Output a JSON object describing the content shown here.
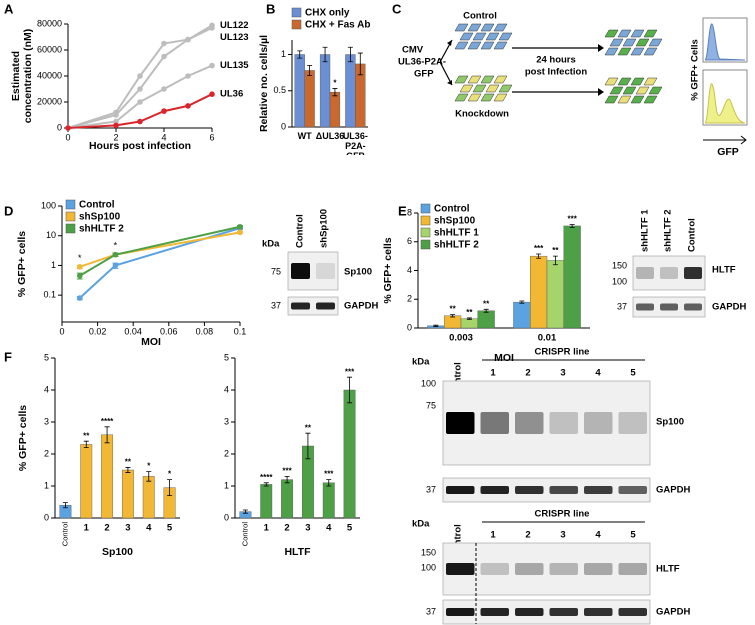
{
  "panel_labels": [
    "A",
    "B",
    "C",
    "D",
    "E",
    "F"
  ],
  "chart_data": [
    {
      "type": "line",
      "x_label": "Hours post infection",
      "y_label": [
        "Estimated",
        "concentration (nM)"
      ],
      "x": [
        0,
        2,
        3,
        4,
        5,
        6
      ],
      "xlim": [
        0,
        6
      ],
      "xticks": [
        0,
        2,
        4,
        6
      ],
      "ylim": [
        0,
        80000
      ],
      "yticks": [
        0,
        20000,
        40000,
        60000,
        80000
      ],
      "series": [
        {
          "name": "UL122",
          "color": "#bdbdbd",
          "values": [
            0,
            12000,
            40000,
            65000,
            68000,
            79000
          ]
        },
        {
          "name": "UL123",
          "color": "#bdbdbd",
          "values": [
            0,
            10000,
            30000,
            55000,
            68000,
            77000
          ]
        },
        {
          "name": "UL135",
          "color": "#bdbdbd",
          "values": [
            0,
            5000,
            20000,
            30000,
            40000,
            48000
          ]
        },
        {
          "name": "UL36",
          "color": "#d9262b",
          "values": [
            0,
            2000,
            5000,
            13000,
            17000,
            26000
          ]
        }
      ]
    },
    {
      "type": "bar",
      "y_label": "Relative no. cells/µl",
      "legend": "top",
      "categories": [
        "WT",
        "ΔUL36",
        "UL36-P2A-GFP"
      ],
      "ylim": [
        0,
        1.2
      ],
      "yticks": [
        0,
        0.5,
        1
      ],
      "series": [
        {
          "name": "CHX only",
          "color": "#6b8fd4",
          "values": [
            1.0,
            1.0,
            1.0
          ],
          "errors": [
            0.05,
            0.1,
            0.1
          ]
        },
        {
          "name": "CHX + Fas Ab",
          "color": "#c9692e",
          "values": [
            0.78,
            0.48,
            0.87
          ],
          "errors": [
            0.07,
            0.05,
            0.15
          ],
          "significance": [
            null,
            "*",
            null
          ]
        }
      ]
    },
    {
      "type": "line",
      "x_label": "MOI",
      "y_label": "% GFP+ cells",
      "log_y": true,
      "legend": "upper left",
      "x": [
        0.01,
        0.03,
        0.1
      ],
      "xlim": [
        0,
        0.1
      ],
      "xticks": [
        0,
        0.02,
        0.04,
        0.06,
        0.08,
        0.1
      ],
      "ylim": [
        0.0125,
        100
      ],
      "yticks": [
        0.1,
        1,
        10,
        100
      ],
      "significance": [
        "*",
        "*",
        null
      ],
      "series": [
        {
          "name": "Control",
          "color": "#5ba3e0",
          "values": [
            0.08,
            1.0,
            18
          ],
          "errors": [
            0.01,
            0.2,
            2
          ]
        },
        {
          "name": "shSp100",
          "color": "#f2b833",
          "values": [
            0.9,
            2.3,
            13
          ],
          "errors": [
            0.1,
            0.3,
            1
          ]
        },
        {
          "name": "shHLTF 2",
          "color": "#4ea046",
          "values": [
            0.45,
            2.3,
            20
          ],
          "errors": [
            0.1,
            0.3,
            2
          ]
        }
      ]
    },
    {
      "type": "bar",
      "x_label": "MOI",
      "y_label": "% GFP+ cells",
      "legend": "upper left",
      "categories": [
        "0.003",
        "0.01"
      ],
      "ylim": [
        0,
        8
      ],
      "yticks": [
        0,
        2,
        4,
        6,
        8
      ],
      "series": [
        {
          "name": "Control",
          "color": "#5ba3e0",
          "values": [
            0.15,
            1.8
          ],
          "errors": [
            0.05,
            0.08
          ]
        },
        {
          "name": "shSp100",
          "color": "#f2b833",
          "values": [
            0.85,
            5.0
          ],
          "errors": [
            0.08,
            0.15
          ],
          "significance": [
            "**",
            "***"
          ]
        },
        {
          "name": "shHLTF 1",
          "color": "#a5d46a",
          "values": [
            0.65,
            4.7
          ],
          "errors": [
            0.05,
            0.3
          ],
          "significance": [
            "**",
            "**"
          ]
        },
        {
          "name": "shHLTF 2",
          "color": "#4ea046",
          "values": [
            1.2,
            7.1
          ],
          "errors": [
            0.1,
            0.1
          ],
          "significance": [
            "**",
            "***"
          ]
        }
      ]
    },
    {
      "type": "bar",
      "x_label": "Sp100",
      "y_label": "% GFP+ cells",
      "categories": [
        "Control",
        "1",
        "2",
        "3",
        "4",
        "5"
      ],
      "ylim": [
        0,
        5
      ],
      "yticks": [
        0,
        1,
        2,
        3,
        4,
        5
      ],
      "values": [
        0.4,
        2.3,
        2.6,
        1.5,
        1.3,
        0.95
      ],
      "errors": [
        0.08,
        0.1,
        0.25,
        0.08,
        0.15,
        0.25
      ],
      "colors": [
        "#5ba3e0",
        "#f2b833",
        "#f2b833",
        "#f2b833",
        "#f2b833",
        "#f2b833"
      ],
      "significance": [
        null,
        "**",
        "****",
        "**",
        "*",
        "*"
      ]
    },
    {
      "type": "bar",
      "x_label": "HLTF",
      "categories": [
        "Control",
        "1",
        "2",
        "3",
        "4",
        "5"
      ],
      "ylim": [
        0,
        5
      ],
      "yticks": [
        0,
        1,
        2,
        3,
        4,
        5
      ],
      "values": [
        0.2,
        1.05,
        1.2,
        2.25,
        1.1,
        4.0
      ],
      "errors": [
        0.05,
        0.05,
        0.1,
        0.4,
        0.1,
        0.4
      ],
      "colors": [
        "#5ba3e0",
        "#4ea046",
        "#4ea046",
        "#4ea046",
        "#4ea046",
        "#4ea046"
      ],
      "significance": [
        null,
        "****",
        "***",
        "**",
        "***",
        "***"
      ]
    }
  ],
  "diagram": {
    "control": "Control",
    "construct": [
      "CMV",
      "UL36-P2A-",
      "GFP"
    ],
    "knockdown": "Knockdown",
    "time": [
      "24 hours",
      "post Infection"
    ],
    "y_label": "% GFP+ Cells",
    "x_label": "GFP"
  },
  "blots": [
    {
      "kda": "kDa",
      "lanes": [
        "Control",
        "shSp100"
      ],
      "markers": [
        "75",
        "37"
      ],
      "targets": [
        "Sp100",
        "GAPDH"
      ]
    },
    {
      "lanes": [
        "shHLTF 1",
        "shHLTF 2",
        "Control"
      ],
      "markers": [
        "150",
        "100",
        "37"
      ],
      "targets": [
        "HLTF",
        "GAPDH"
      ]
    },
    {
      "kda": "kDa",
      "control": "Control",
      "group": "CRISPR line",
      "lanes": [
        "1",
        "2",
        "3",
        "4",
        "5"
      ],
      "markers": [
        "100",
        "75",
        "37"
      ],
      "targets": [
        "Sp100",
        "GAPDH"
      ]
    },
    {
      "kda": "kDa",
      "control": "Control",
      "group": "CRISPR line",
      "lanes": [
        "1",
        "2",
        "3",
        "4",
        "5"
      ],
      "markers": [
        "150",
        "100",
        "37"
      ],
      "targets": [
        "HLTF",
        "GAPDH"
      ]
    }
  ]
}
